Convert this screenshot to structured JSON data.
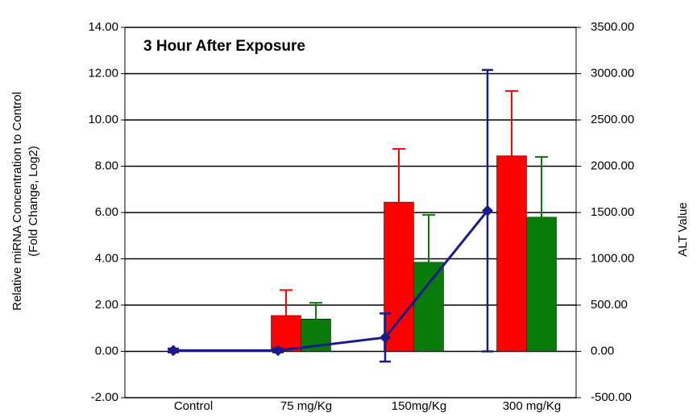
{
  "chart_data": {
    "type": "bar",
    "title": "3 Hour After Exposure",
    "y_label": [
      "Relative miRNA Concentration to Control",
      "(Fold Change, Log2)"
    ],
    "y2_label": "ALT Value",
    "categories": [
      "Control",
      "75 mg/Kg",
      "150mg/Kg",
      "300 mg/Kg"
    ],
    "series": [
      {
        "color": "#ff0000",
        "values": [
          0,
          1.55,
          6.45,
          8.45
        ],
        "errors": [
          null,
          1.1,
          2.3,
          2.8
        ]
      },
      {
        "color": "#0a7a0a",
        "values": [
          0,
          1.4,
          3.85,
          5.8
        ],
        "errors": [
          null,
          0.7,
          2.05,
          2.6
        ]
      },
      {
        "color": "#1a1a8c",
        "axis": "y2",
        "type": "line",
        "values": [
          10,
          10,
          150,
          1520
        ],
        "errors": [
          20,
          20,
          260,
          1520
        ]
      }
    ],
    "ylim": [
      -2,
      14
    ],
    "yticks": [
      {
        "value": -2,
        "label": "-2.00"
      },
      {
        "value": 0,
        "label": "0.00"
      },
      {
        "value": 2,
        "label": "2.00"
      },
      {
        "value": 4,
        "label": "4.00"
      },
      {
        "value": 6,
        "label": "6.00"
      },
      {
        "value": 8,
        "label": "8.00"
      },
      {
        "value": 10,
        "label": "10.00"
      },
      {
        "value": 12,
        "label": "12.00"
      },
      {
        "value": 14,
        "label": "14.00"
      }
    ],
    "y2lim": [
      -500,
      3500
    ],
    "y2ticks": [
      {
        "value": -500,
        "label": "-500.00"
      },
      {
        "value": 0,
        "label": "0.00"
      },
      {
        "value": 500,
        "label": "500.00"
      },
      {
        "value": 1000,
        "label": "1000.00"
      },
      {
        "value": 1500,
        "label": "1500.00"
      },
      {
        "value": 2000,
        "label": "2000.00"
      },
      {
        "value": 2500,
        "label": "2500.00"
      },
      {
        "value": 3000,
        "label": "3000.00"
      },
      {
        "value": 3500,
        "label": "3500.00"
      }
    ],
    "grid": true
  }
}
